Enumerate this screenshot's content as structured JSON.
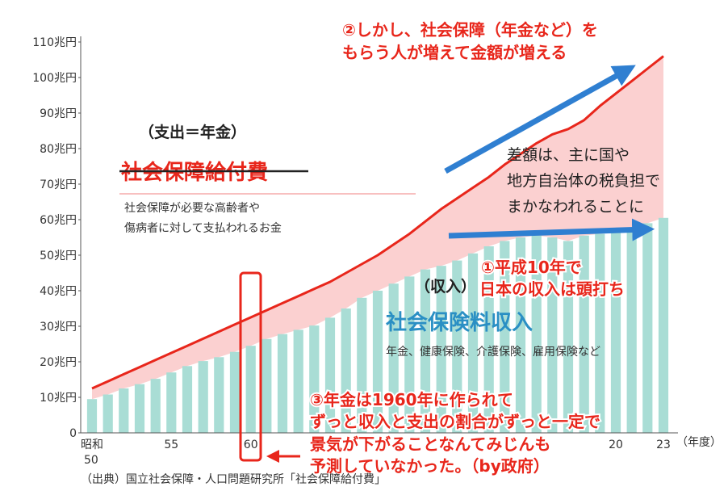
{
  "chart_data": {
    "type": "bar",
    "title": "",
    "xlabel": "",
    "ylabel": "",
    "ylim": [
      0,
      110
    ],
    "y_ticks": [
      "0",
      "10兆円",
      "20兆円",
      "30兆円",
      "40兆円",
      "50兆円",
      "60兆円",
      "70兆円",
      "80兆円",
      "90兆円",
      "100兆円",
      "110兆円"
    ],
    "x_tick_labels": [
      {
        "label": "昭和",
        "label2": "50",
        "year": 50
      },
      {
        "label": "55",
        "year": 55
      },
      {
        "label": "60",
        "year": 60
      },
      {
        "label": "20",
        "year": 83
      },
      {
        "label": "23",
        "year": 86
      }
    ],
    "x_unit": "（年度）",
    "x": [
      50,
      51,
      52,
      53,
      54,
      55,
      56,
      57,
      58,
      59,
      60,
      61,
      62,
      63,
      64,
      65,
      66,
      67,
      68,
      69,
      70,
      71,
      72,
      73,
      74,
      75,
      76,
      77,
      78,
      79,
      80,
      81,
      82,
      83,
      84,
      85,
      86
    ],
    "series": [
      {
        "name": "社会保険料収入",
        "kind": "bar",
        "values": [
          9.5,
          10.8,
          12.5,
          13.7,
          15.2,
          17,
          18.8,
          20.2,
          21.3,
          22.8,
          24.5,
          26.4,
          27.8,
          29,
          30.2,
          32.4,
          35,
          38,
          40,
          42,
          44,
          46,
          47,
          48.5,
          50.5,
          52.5,
          54,
          55,
          55.5,
          55,
          54,
          55.5,
          56,
          56.5,
          57.5,
          59,
          60.5
        ]
      },
      {
        "name": "社会保障給付費",
        "kind": "line",
        "values": [
          12.5,
          14.5,
          16.5,
          18.5,
          20.5,
          22.5,
          24.5,
          26.5,
          28.5,
          30.5,
          32.5,
          34.5,
          36.5,
          38.5,
          40.5,
          42.5,
          45,
          47.5,
          50,
          53,
          56,
          59.5,
          63,
          66,
          69,
          72,
          75.5,
          78.5,
          81.5,
          84,
          85.5,
          88,
          92,
          95.5,
          99,
          102.5,
          106
        ]
      }
    ],
    "notes": {
      "cost_paren": "（支出＝年金）",
      "cost_title": "社会保障給付費",
      "cost_desc_1": "社会保障が必要な高齢者や",
      "cost_desc_2": "傷病者に対して支払われるお金",
      "income_paren": "（収入）",
      "income_title": "社会保険料収入",
      "income_desc": "年金、健康保険、介護保険、雇用保険など",
      "diff_1": "差額は、主に国や",
      "diff_2": "地方自治体の税負担で",
      "diff_3": "まかなわれることに",
      "ann1_1": "①平成10年で",
      "ann1_2": "日本の収入は頭打ち",
      "ann2_1": "②しかし、社会保障（年金など）を",
      "ann2_2": "もらう人が増えて金額が増える",
      "ann3_1": "③年金は1960年に作られて",
      "ann3_2": "ずっと収入と支出の割合がずっと一定で",
      "ann3_3": "景気が下がることなんてみじんも",
      "ann3_4": "予測していなかった。（by政府）",
      "source": "（出典）国立社会保障・人口問題研究所「社会保障給付費」"
    },
    "colors": {
      "bar": "#a9ddd5",
      "line": "#e8261b",
      "gap_fill": "#fbd0d0",
      "arrow": "#2f7fd1",
      "highlight": "#e8261b"
    },
    "grid": false
  }
}
